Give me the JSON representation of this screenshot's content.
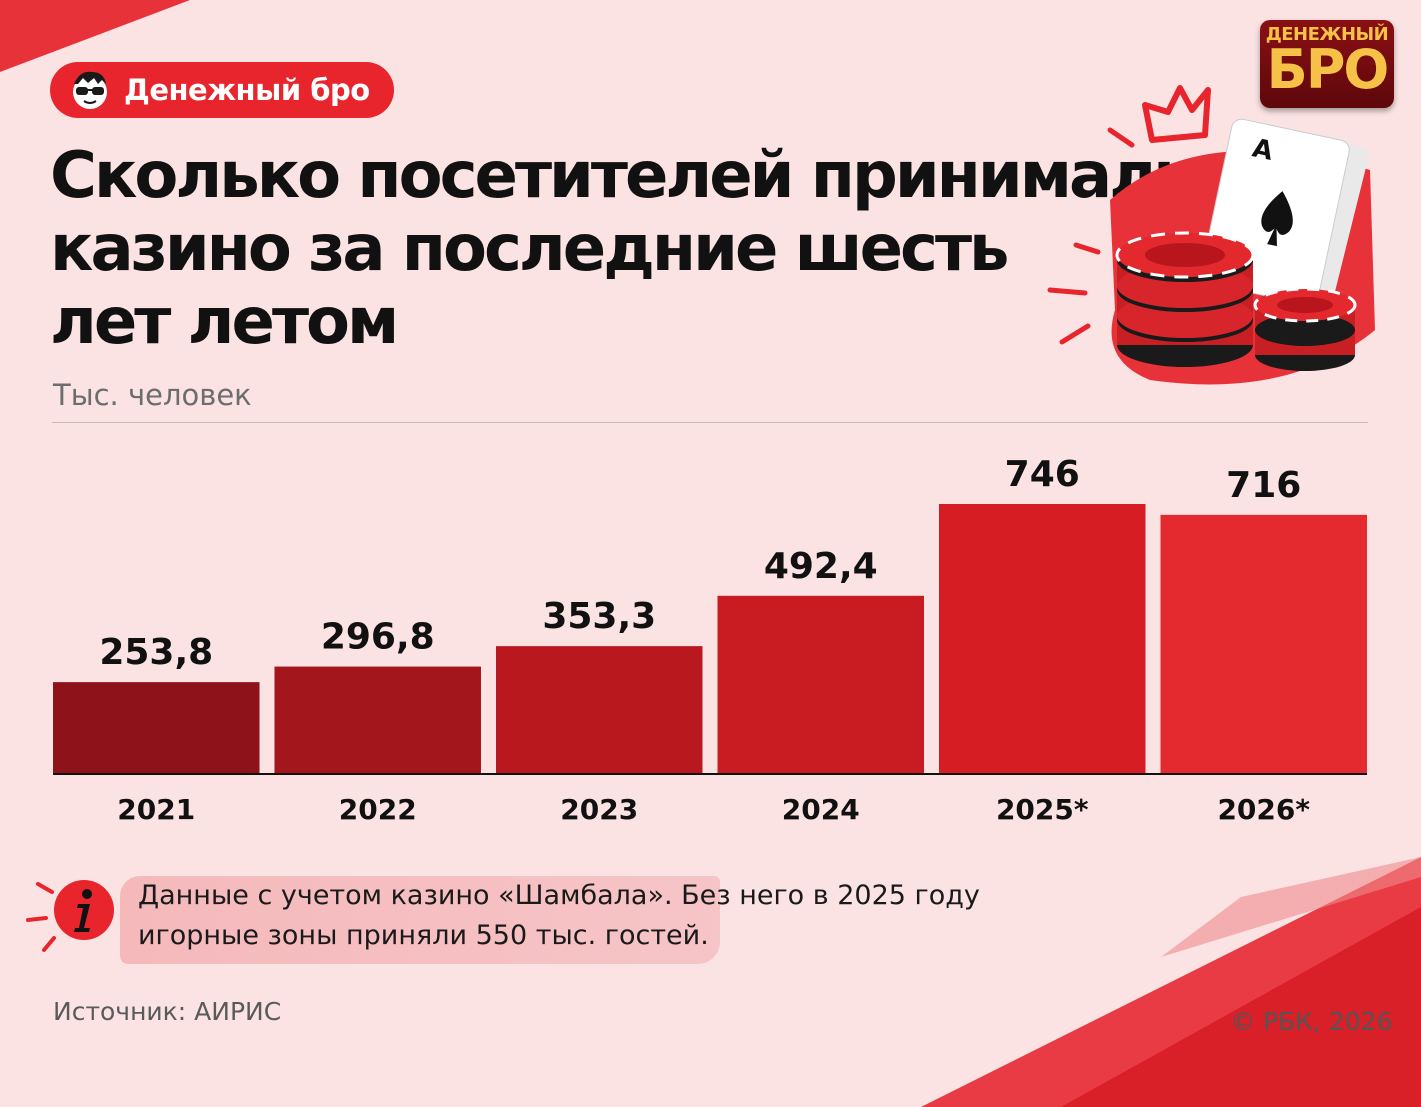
{
  "header": {
    "badge_label": "Денежный бро",
    "title_lines": [
      "Сколько посетителей принимали",
      "казино за последние шесть",
      "лет летом"
    ],
    "unit": "Тыс. человек"
  },
  "logo": {
    "top": "ДЕНЕЖНЫЙ",
    "bottom": "БРО"
  },
  "chart_data": {
    "type": "bar",
    "title": "Сколько посетителей принимали казино за последние шесть лет летом",
    "ylabel": "Тыс. человек",
    "categories": [
      "2021",
      "2022",
      "2023",
      "2024",
      "2025*",
      "2026*"
    ],
    "values": [
      253.8,
      296.8,
      353.3,
      492.4,
      746,
      716
    ],
    "value_labels": [
      "253,8",
      "296,8",
      "353,3",
      "492,4",
      "746",
      "716"
    ],
    "ylim": [
      0,
      800
    ],
    "grid": false,
    "bar_colors": [
      "#8d1219",
      "#a3161c",
      "#b9181f",
      "#c91b22",
      "#d61d24",
      "#e52a2f"
    ]
  },
  "note": {
    "icon": "info-icon",
    "lines": [
      "Данные с учетом казино «Шамбала». Без него в 2025 году",
      "игорные зоны приняли 550 тыс. гостей."
    ]
  },
  "footer": {
    "source": "Источник: АИРИС",
    "copyright": "© РБК, 2026"
  },
  "colors": {
    "background": "#fbe3e3",
    "accent": "#e8252c",
    "logo_gold": "#f5c147"
  }
}
